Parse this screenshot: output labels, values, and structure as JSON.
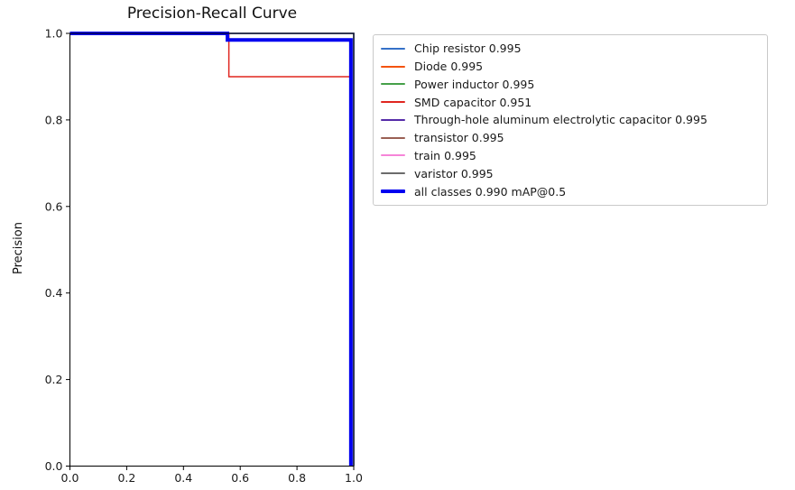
{
  "page": {
    "background": "#ffffff",
    "text_color": "#1a1a1a"
  },
  "chart_data": {
    "type": "line",
    "title": "Precision-Recall Curve",
    "xlabel": "",
    "ylabel": "Precision",
    "xlim": [
      0.0,
      1.0
    ],
    "ylim": [
      0.0,
      1.0
    ],
    "x_ticks": [
      "0.0",
      "0.2",
      "0.4",
      "0.6",
      "0.8",
      "1.0"
    ],
    "y_ticks": [
      "0.0",
      "0.2",
      "0.4",
      "0.6",
      "0.8",
      "1.0"
    ],
    "x_tick_values": [
      0.0,
      0.2,
      0.4,
      0.6,
      0.8,
      1.0
    ],
    "y_tick_values": [
      0.0,
      0.2,
      0.4,
      0.6,
      0.8,
      1.0
    ],
    "grid": false,
    "legend_position": "upper-right-outside",
    "series": [
      {
        "name": "Chip resistor 0.995",
        "color": "#3571c8",
        "width": 1.5,
        "points": [
          [
            0,
            1
          ],
          [
            1,
            1
          ],
          [
            1,
            0
          ]
        ]
      },
      {
        "name": "Diode 0.995",
        "color": "#f4530e",
        "width": 1.5,
        "points": [
          [
            0,
            1
          ],
          [
            1,
            1
          ],
          [
            1,
            0
          ]
        ]
      },
      {
        "name": "Power inductor 0.995",
        "color": "#46a049",
        "width": 1.5,
        "points": [
          [
            0,
            1
          ],
          [
            1,
            1
          ],
          [
            1,
            0
          ]
        ]
      },
      {
        "name": "SMD capacitor 0.951",
        "color": "#e0261f",
        "width": 1.5,
        "points": [
          [
            0,
            1
          ],
          [
            0.56,
            1
          ],
          [
            0.56,
            0.9
          ],
          [
            0.99,
            0.9
          ],
          [
            0.99,
            0
          ]
        ]
      },
      {
        "name": "Through-hole aluminum electrolytic capacitor 0.995",
        "color": "#552ba8",
        "width": 1.5,
        "points": [
          [
            0,
            1
          ],
          [
            1,
            1
          ],
          [
            1,
            0
          ]
        ]
      },
      {
        "name": "transistor 0.995",
        "color": "#9a6054",
        "width": 1.5,
        "points": [
          [
            0,
            1
          ],
          [
            1,
            1
          ],
          [
            1,
            0
          ]
        ]
      },
      {
        "name": "train 0.995",
        "color": "#f685d8",
        "width": 1.5,
        "points": [
          [
            0,
            1
          ],
          [
            1,
            1
          ],
          [
            1,
            0
          ]
        ]
      },
      {
        "name": "varistor 0.995",
        "color": "#6b6b6b",
        "width": 1.5,
        "points": [
          [
            0,
            1
          ],
          [
            1,
            1
          ],
          [
            1,
            0
          ]
        ]
      },
      {
        "name": "all classes 0.990 mAP@0.5",
        "color": "#0000f0",
        "width": 4,
        "points": [
          [
            0,
            1
          ],
          [
            0.555,
            1
          ],
          [
            0.555,
            0.985
          ],
          [
            0.99,
            0.985
          ],
          [
            0.99,
            0
          ]
        ]
      }
    ]
  }
}
